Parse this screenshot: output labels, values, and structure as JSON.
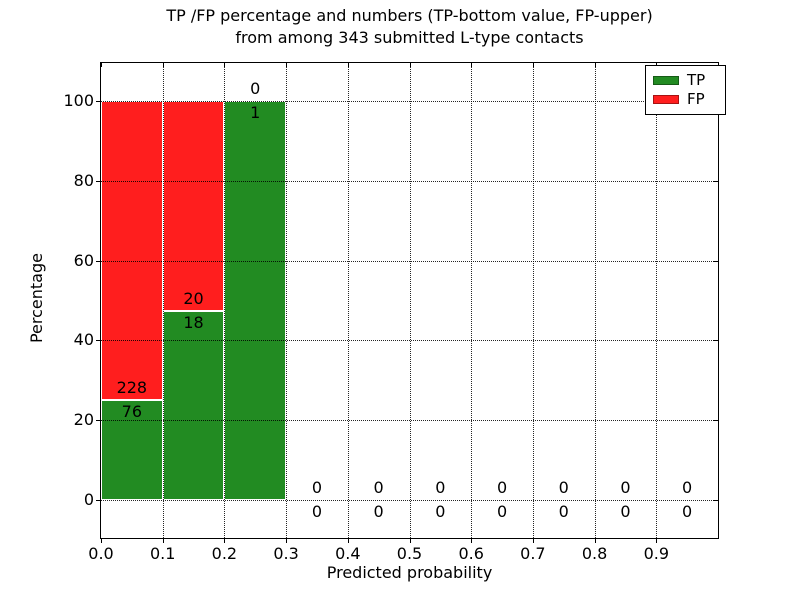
{
  "title": {
    "line1": "TP /FP percentage and numbers (TP-bottom value, FP-upper)",
    "line2": "from among 343 submitted L-type contacts"
  },
  "chart_data": {
    "type": "bar",
    "stacked": true,
    "title": "TP /FP percentage and numbers (TP-bottom value, FP-upper) from among 343 submitted L-type contacts",
    "xlabel": "Predicted probability",
    "ylabel": "Percentage",
    "total_contacts": 343,
    "xlim": [
      0.0,
      1.0
    ],
    "ylim": [
      -10,
      110
    ],
    "x_ticks": [
      "0.0",
      "0.1",
      "0.2",
      "0.3",
      "0.4",
      "0.5",
      "0.6",
      "0.7",
      "0.8",
      "0.9"
    ],
    "y_ticks": [
      0,
      20,
      40,
      60,
      80,
      100
    ],
    "grid": true,
    "legend_position": "upper right",
    "legend": [
      {
        "label": "TP",
        "color": "#228b22"
      },
      {
        "label": "FP",
        "color": "#ff1e1e"
      }
    ],
    "bins": [
      {
        "range": [
          0.0,
          0.1
        ],
        "tp_count": 76,
        "fp_count": 228,
        "tp_pct": 25.0,
        "fp_pct": 75.0
      },
      {
        "range": [
          0.1,
          0.2
        ],
        "tp_count": 18,
        "fp_count": 20,
        "tp_pct": 47.4,
        "fp_pct": 52.6
      },
      {
        "range": [
          0.2,
          0.3
        ],
        "tp_count": 1,
        "fp_count": 0,
        "tp_pct": 100.0,
        "fp_pct": 0.0
      },
      {
        "range": [
          0.3,
          0.4
        ],
        "tp_count": 0,
        "fp_count": 0,
        "tp_pct": 0.0,
        "fp_pct": 0.0
      },
      {
        "range": [
          0.4,
          0.5
        ],
        "tp_count": 0,
        "fp_count": 0,
        "tp_pct": 0.0,
        "fp_pct": 0.0
      },
      {
        "range": [
          0.5,
          0.6
        ],
        "tp_count": 0,
        "fp_count": 0,
        "tp_pct": 0.0,
        "fp_pct": 0.0
      },
      {
        "range": [
          0.6,
          0.7
        ],
        "tp_count": 0,
        "fp_count": 0,
        "tp_pct": 0.0,
        "fp_pct": 0.0
      },
      {
        "range": [
          0.7,
          0.8
        ],
        "tp_count": 0,
        "fp_count": 0,
        "tp_pct": 0.0,
        "fp_pct": 0.0
      },
      {
        "range": [
          0.8,
          0.9
        ],
        "tp_count": 0,
        "fp_count": 0,
        "tp_pct": 0.0,
        "fp_pct": 0.0
      },
      {
        "range": [
          0.9,
          1.0
        ],
        "tp_count": 0,
        "fp_count": 0,
        "tp_pct": 0.0,
        "fp_pct": 0.0
      }
    ]
  },
  "colors": {
    "tp": "#228b22",
    "fp": "#ff1e1e",
    "bar_edge": "#ffffff",
    "grid": "#000000",
    "axis": "#000000",
    "background": "#ffffff",
    "text": "#000000"
  }
}
